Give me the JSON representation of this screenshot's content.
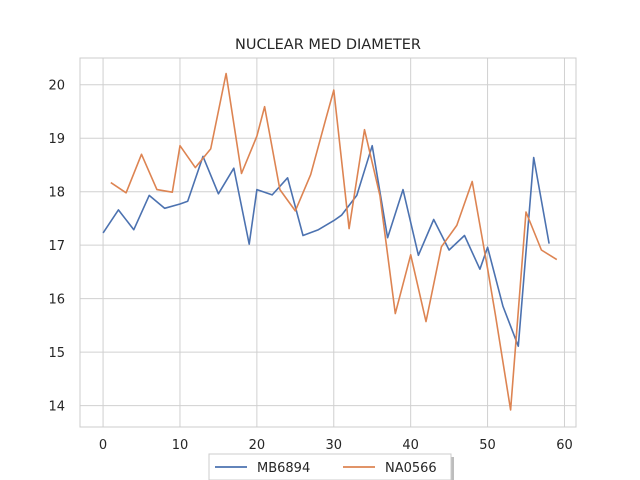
{
  "chart_data": {
    "type": "line",
    "title": "NUCLEAR MED DIAMETER",
    "xlabel": "",
    "ylabel": "",
    "xlim": [
      -3,
      61.5
    ],
    "ylim": [
      13.6,
      20.5
    ],
    "xticks": [
      0,
      10,
      20,
      30,
      40,
      50,
      60
    ],
    "yticks": [
      14,
      15,
      16,
      17,
      18,
      19,
      20
    ],
    "grid": true,
    "legend": "bottom-center",
    "series": [
      {
        "name": "MB6894",
        "color": "#4c72b0",
        "x": [
          0,
          2,
          4,
          6,
          8,
          10,
          11,
          13,
          15,
          17,
          19,
          20,
          22,
          24,
          26,
          28,
          30,
          31,
          33,
          35,
          37,
          39,
          41,
          43,
          45,
          47,
          49,
          50,
          52,
          54,
          56,
          58
        ],
        "y": [
          17.23,
          17.66,
          17.29,
          17.93,
          17.69,
          17.77,
          17.82,
          18.66,
          17.96,
          18.44,
          17.02,
          18.04,
          17.94,
          18.26,
          17.18,
          17.29,
          17.46,
          17.56,
          17.93,
          18.86,
          17.14,
          18.04,
          16.81,
          17.48,
          16.91,
          17.18,
          16.55,
          16.96,
          15.86,
          15.11,
          18.64,
          17.03
        ]
      },
      {
        "name": "NA0566",
        "color": "#dd8452",
        "x": [
          1,
          3,
          5,
          7,
          9,
          10,
          12,
          14,
          16,
          18,
          20,
          21,
          23,
          25,
          27,
          29,
          30,
          32,
          34,
          36,
          38,
          40,
          42,
          44,
          46,
          48,
          50,
          51,
          53,
          55,
          57,
          59
        ],
        "y": [
          18.17,
          17.98,
          18.7,
          18.04,
          17.99,
          18.86,
          18.45,
          18.8,
          20.21,
          18.34,
          19.04,
          19.59,
          18.04,
          17.64,
          18.32,
          19.38,
          19.9,
          17.31,
          19.16,
          17.93,
          15.72,
          16.82,
          15.57,
          16.97,
          17.37,
          18.19,
          16.56,
          15.71,
          13.92,
          17.62,
          16.91,
          16.73
        ]
      }
    ]
  }
}
